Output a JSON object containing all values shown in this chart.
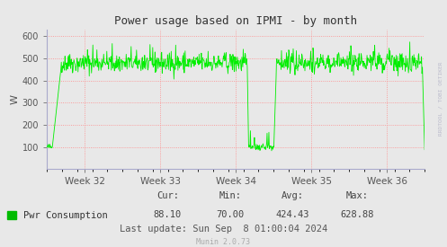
{
  "title": "Power usage based on IPMI - by month",
  "ylabel": "W",
  "line_color": "#00ee00",
  "bg_color": "#e8e8e8",
  "grid_color": "#ff8888",
  "ylim": [
    0,
    630
  ],
  "yticks": [
    100,
    200,
    300,
    400,
    500,
    600
  ],
  "week_labels": [
    "Week 32",
    "Week 33",
    "Week 34",
    "Week 35",
    "Week 36"
  ],
  "legend_label": "Pwr Consumption",
  "legend_color": "#00bb00",
  "stats_cur_label": "Cur:",
  "stats_cur": "88.10",
  "stats_min_label": "Min:",
  "stats_min": "70.00",
  "stats_avg_label": "Avg:",
  "stats_avg": "424.43",
  "stats_max_label": "Max:",
  "stats_max": "628.88",
  "last_update": "Last update: Sun Sep  8 01:00:04 2024",
  "watermark": "Munin 2.0.73",
  "rrdtool_text": "RRDTOOL / TOBI OETIKER",
  "spine_color": "#aaaacc",
  "tick_color": "#555555"
}
